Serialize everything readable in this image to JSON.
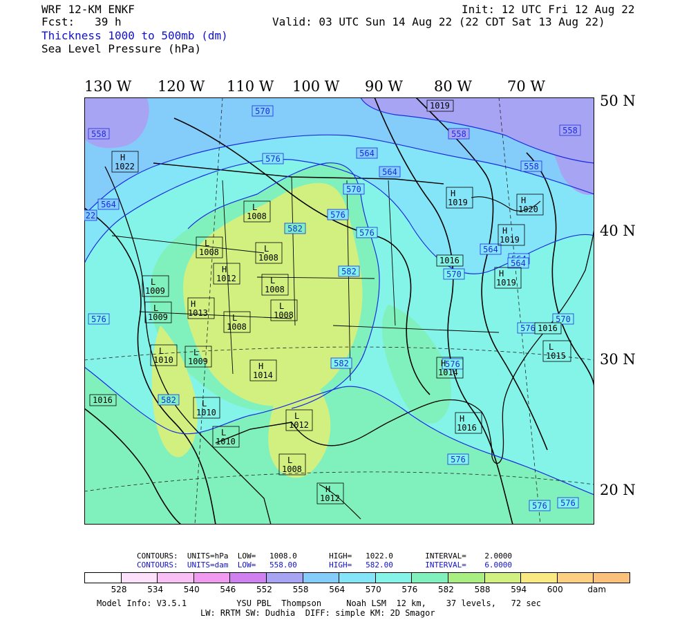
{
  "header": {
    "model": "WRF 12-KM ENKF",
    "forecast": "Fcst:   39 h",
    "field1": "Thickness 1000 to 500mb (dm)",
    "field2": "Sea Level Pressure (hPa)",
    "init": "Init: 12 UTC Fri 12 Aug 22",
    "valid": "Valid: 03 UTC Sun 14 Aug 22 (22 CDT Sat 13 Aug 22)"
  },
  "axes": {
    "lon_labels": [
      "130 W",
      "120 W",
      "110 W",
      "100 W",
      "90 W",
      "80 W",
      "70 W"
    ],
    "lat_labels": [
      "50 N",
      "40 N",
      "30 N",
      "20 N"
    ]
  },
  "map": {
    "thickness_labels": [
      "570",
      "576",
      "558",
      "564",
      "558",
      "564",
      "582",
      "576",
      "564",
      "570",
      "576",
      "576",
      "582",
      "576",
      "582",
      "570",
      "564",
      "564",
      "558",
      "558",
      "558",
      "570",
      "576",
      "576",
      "576",
      "582",
      "576",
      "576",
      "564"
    ],
    "pressure_centers": [
      {
        "type": "H",
        "value": "1022"
      },
      {
        "type": "L",
        "value": "1008"
      },
      {
        "type": "L",
        "value": "1008"
      },
      {
        "type": "L",
        "value": "1008"
      },
      {
        "type": "H",
        "value": "1012"
      },
      {
        "type": "L",
        "value": "1009"
      },
      {
        "type": "L",
        "value": "1008"
      },
      {
        "type": "L",
        "value": "1009"
      },
      {
        "type": "H",
        "value": "1013"
      },
      {
        "type": "L",
        "value": "1008"
      },
      {
        "type": "L",
        "value": "1008"
      },
      {
        "type": "L",
        "value": "1010"
      },
      {
        "type": "L",
        "value": "1009"
      },
      {
        "type": "H",
        "value": "1014"
      },
      {
        "type": "L",
        "value": "1010"
      },
      {
        "type": "L",
        "value": "1010"
      },
      {
        "type": "L",
        "value": "1012"
      },
      {
        "type": "L",
        "value": "1008"
      },
      {
        "type": "H",
        "value": "1012"
      },
      {
        "type": "H",
        "value": "1019"
      },
      {
        "type": "H",
        "value": "1020"
      },
      {
        "type": "H",
        "value": "1019"
      },
      {
        "type": "H",
        "value": "1019"
      },
      {
        "type": "H",
        "value": "1016"
      },
      {
        "type": "H",
        "value": "1014"
      },
      {
        "type": "L",
        "value": "1015"
      }
    ],
    "isobar_labels": [
      "1019",
      "1016",
      "1016",
      "1016"
    ]
  },
  "contour_info": {
    "line1": "CONTOURS:  UNITS=hPa  LOW=   1008.0       HIGH=   1022.0       INTERVAL=    2.0000",
    "line2": "CONTOURS:  UNITS=dam  LOW=   558.00       HIGH=   582.00       INTERVAL=    6.0000"
  },
  "colorbar": {
    "colors": [
      "#ffffff",
      "#fde0fb",
      "#f8c0f4",
      "#f09af0",
      "#d080f0",
      "#a8a4f4",
      "#84ccfa",
      "#84e4f8",
      "#84f4e8",
      "#80f0bc",
      "#a8ee80",
      "#d2f080",
      "#fae880",
      "#fcd080",
      "#fbc07a"
    ],
    "labels": [
      "528",
      "534",
      "540",
      "546",
      "552",
      "558",
      "564",
      "570",
      "576",
      "582",
      "588",
      "594",
      "600",
      "dam"
    ]
  },
  "footer": {
    "line1": "Model Info: V3.5.1          YSU PBL  Thompson     Noah LSM  12 km,    37 levels,   72 sec",
    "line2": "LW: RRTM SW: Dudhia  DIFF: simple KM: 2D Smagor"
  },
  "colors": {
    "thickness_contour": "#1a2ce0",
    "isobar": "#000000",
    "low_thickness": "#a9a6f5",
    "mid_thickness": "#84e4f8",
    "high_thickness": "#d2f080"
  }
}
